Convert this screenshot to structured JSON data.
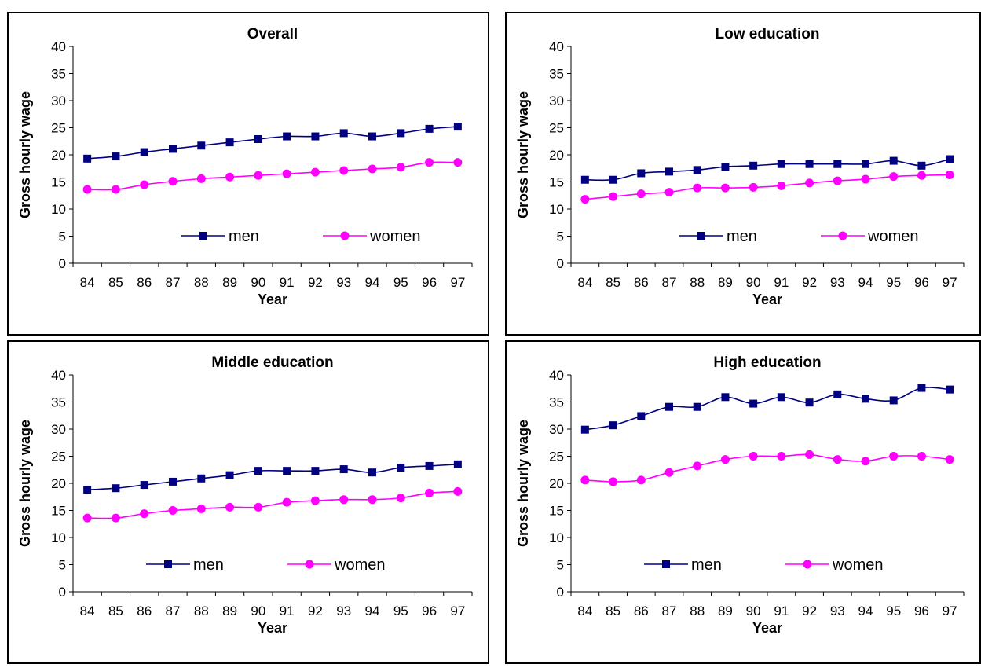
{
  "colors": {
    "men": "#000080",
    "women": "#ff00ff"
  },
  "chart_data": [
    {
      "type": "line",
      "title": "Overall",
      "xlabel": "Year",
      "ylabel": "Gross hourly wage",
      "categories": [
        "84",
        "85",
        "86",
        "87",
        "88",
        "89",
        "90",
        "91",
        "92",
        "93",
        "94",
        "95",
        "96",
        "97"
      ],
      "ylim": [
        0,
        40
      ],
      "yticks": [
        "0",
        "5",
        "10",
        "15",
        "20",
        "25",
        "30",
        "35",
        "40"
      ],
      "legend_position": "lower-center",
      "series": [
        {
          "name": "men",
          "values": [
            19.3,
            19.7,
            20.5,
            21.1,
            21.7,
            22.3,
            22.9,
            23.4,
            23.4,
            24.0,
            23.4,
            24.0,
            24.8,
            25.2
          ]
        },
        {
          "name": "women",
          "values": [
            13.6,
            13.6,
            14.5,
            15.1,
            15.6,
            15.9,
            16.2,
            16.5,
            16.8,
            17.1,
            17.4,
            17.7,
            18.6,
            18.6
          ]
        }
      ]
    },
    {
      "type": "line",
      "title": "Low education",
      "xlabel": "Year",
      "ylabel": "Gross hourly wage",
      "categories": [
        "84",
        "85",
        "86",
        "87",
        "88",
        "89",
        "90",
        "91",
        "92",
        "93",
        "94",
        "95",
        "96",
        "97"
      ],
      "ylim": [
        0,
        40
      ],
      "yticks": [
        "0",
        "5",
        "10",
        "15",
        "20",
        "25",
        "30",
        "35",
        "40"
      ],
      "legend_position": "lower-center",
      "series": [
        {
          "name": "men",
          "values": [
            15.4,
            15.4,
            16.6,
            16.9,
            17.2,
            17.8,
            18.0,
            18.3,
            18.3,
            18.3,
            18.3,
            18.9,
            18.0,
            19.2
          ]
        },
        {
          "name": "women",
          "values": [
            11.8,
            12.3,
            12.8,
            13.1,
            13.9,
            13.9,
            14.0,
            14.3,
            14.8,
            15.2,
            15.5,
            16.0,
            16.2,
            16.3
          ]
        }
      ]
    },
    {
      "type": "line",
      "title": "Middle education",
      "xlabel": "Year",
      "ylabel": "Gross hourly wage",
      "categories": [
        "84",
        "85",
        "86",
        "87",
        "88",
        "89",
        "90",
        "91",
        "92",
        "93",
        "94",
        "95",
        "96",
        "97"
      ],
      "ylim": [
        0,
        40
      ],
      "yticks": [
        "0",
        "5",
        "10",
        "15",
        "20",
        "25",
        "30",
        "35",
        "40"
      ],
      "legend_position": "lower-center",
      "series": [
        {
          "name": "men",
          "values": [
            18.8,
            19.1,
            19.7,
            20.3,
            20.9,
            21.5,
            22.3,
            22.3,
            22.3,
            22.6,
            22.0,
            22.9,
            23.2,
            23.5
          ]
        },
        {
          "name": "women",
          "values": [
            13.6,
            13.6,
            14.4,
            15.0,
            15.3,
            15.6,
            15.6,
            16.5,
            16.8,
            17.0,
            17.0,
            17.3,
            18.2,
            18.5
          ]
        }
      ]
    },
    {
      "type": "line",
      "title": "High education",
      "xlabel": "Year",
      "ylabel": "Gross hourly wage",
      "categories": [
        "84",
        "85",
        "86",
        "87",
        "88",
        "89",
        "90",
        "91",
        "92",
        "93",
        "94",
        "95",
        "96",
        "97"
      ],
      "ylim": [
        0,
        40
      ],
      "yticks": [
        "0",
        "5",
        "10",
        "15",
        "20",
        "25",
        "30",
        "35",
        "40"
      ],
      "legend_position": "lower-center",
      "series": [
        {
          "name": "men",
          "values": [
            29.9,
            30.7,
            32.4,
            34.1,
            34.1,
            35.9,
            34.7,
            35.9,
            34.9,
            36.4,
            35.6,
            35.3,
            37.6,
            37.3
          ]
        },
        {
          "name": "women",
          "values": [
            20.6,
            20.3,
            20.6,
            22.0,
            23.2,
            24.4,
            25.0,
            25.0,
            25.3,
            24.4,
            24.1,
            25.0,
            25.0,
            24.4
          ]
        }
      ]
    }
  ]
}
